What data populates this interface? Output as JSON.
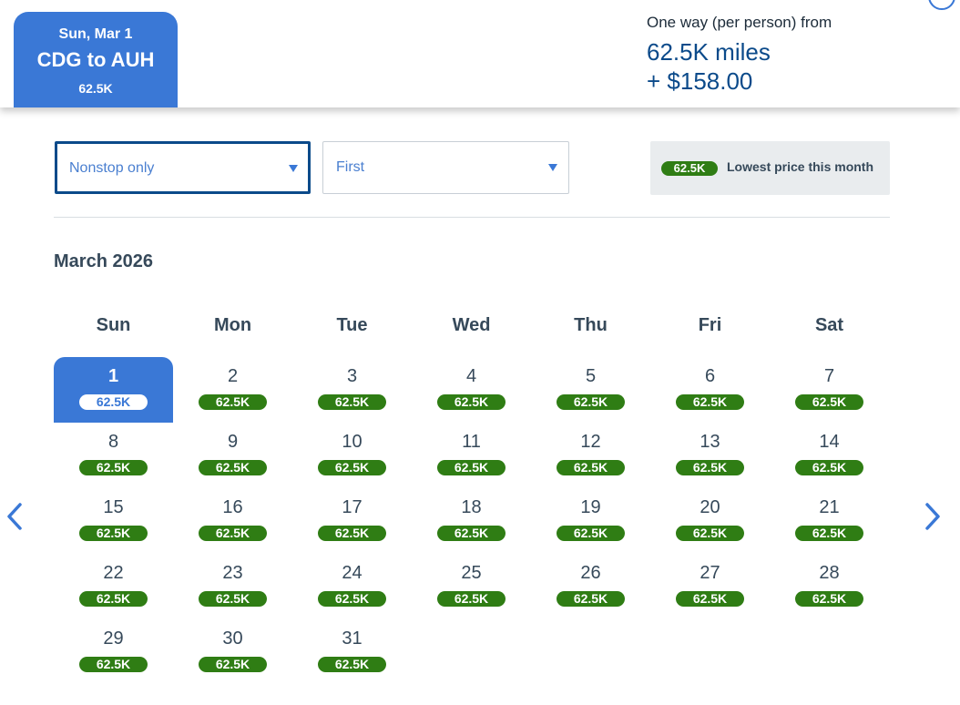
{
  "flight_tab": {
    "date": "Sun, Mar 1",
    "route": "CDG to AUH",
    "price": "62.5K"
  },
  "summary": {
    "label": "One way (per person) from",
    "miles": "62.5K miles",
    "cash": "+ $158.00"
  },
  "filters": {
    "stops": "Nonstop only",
    "cabin": "First"
  },
  "legend": {
    "pill": "62.5K",
    "text": "Lowest price this month"
  },
  "calendar": {
    "month": "March 2026",
    "weekdays": [
      "Sun",
      "Mon",
      "Tue",
      "Wed",
      "Thu",
      "Fri",
      "Sat"
    ],
    "start_weekday": 0,
    "selected_day": 1,
    "days": [
      {
        "day": "1",
        "price": "62.5K"
      },
      {
        "day": "2",
        "price": "62.5K"
      },
      {
        "day": "3",
        "price": "62.5K"
      },
      {
        "day": "4",
        "price": "62.5K"
      },
      {
        "day": "5",
        "price": "62.5K"
      },
      {
        "day": "6",
        "price": "62.5K"
      },
      {
        "day": "7",
        "price": "62.5K"
      },
      {
        "day": "8",
        "price": "62.5K"
      },
      {
        "day": "9",
        "price": "62.5K"
      },
      {
        "day": "10",
        "price": "62.5K"
      },
      {
        "day": "11",
        "price": "62.5K"
      },
      {
        "day": "12",
        "price": "62.5K"
      },
      {
        "day": "13",
        "price": "62.5K"
      },
      {
        "day": "14",
        "price": "62.5K"
      },
      {
        "day": "15",
        "price": "62.5K"
      },
      {
        "day": "16",
        "price": "62.5K"
      },
      {
        "day": "17",
        "price": "62.5K"
      },
      {
        "day": "18",
        "price": "62.5K"
      },
      {
        "day": "19",
        "price": "62.5K"
      },
      {
        "day": "20",
        "price": "62.5K"
      },
      {
        "day": "21",
        "price": "62.5K"
      },
      {
        "day": "22",
        "price": "62.5K"
      },
      {
        "day": "23",
        "price": "62.5K"
      },
      {
        "day": "24",
        "price": "62.5K"
      },
      {
        "day": "25",
        "price": "62.5K"
      },
      {
        "day": "26",
        "price": "62.5K"
      },
      {
        "day": "27",
        "price": "62.5K"
      },
      {
        "day": "28",
        "price": "62.5K"
      },
      {
        "day": "29",
        "price": "62.5K"
      },
      {
        "day": "30",
        "price": "62.5K"
      },
      {
        "day": "31",
        "price": "62.5K"
      }
    ]
  },
  "nav": {
    "prev_icon": "chevron-left-icon",
    "next_icon": "chevron-right-icon"
  },
  "colors": {
    "primary_blue": "#3a78d6",
    "dark_blue": "#0b4a8a",
    "price_green": "#2f7d14",
    "text": "#36495a"
  }
}
